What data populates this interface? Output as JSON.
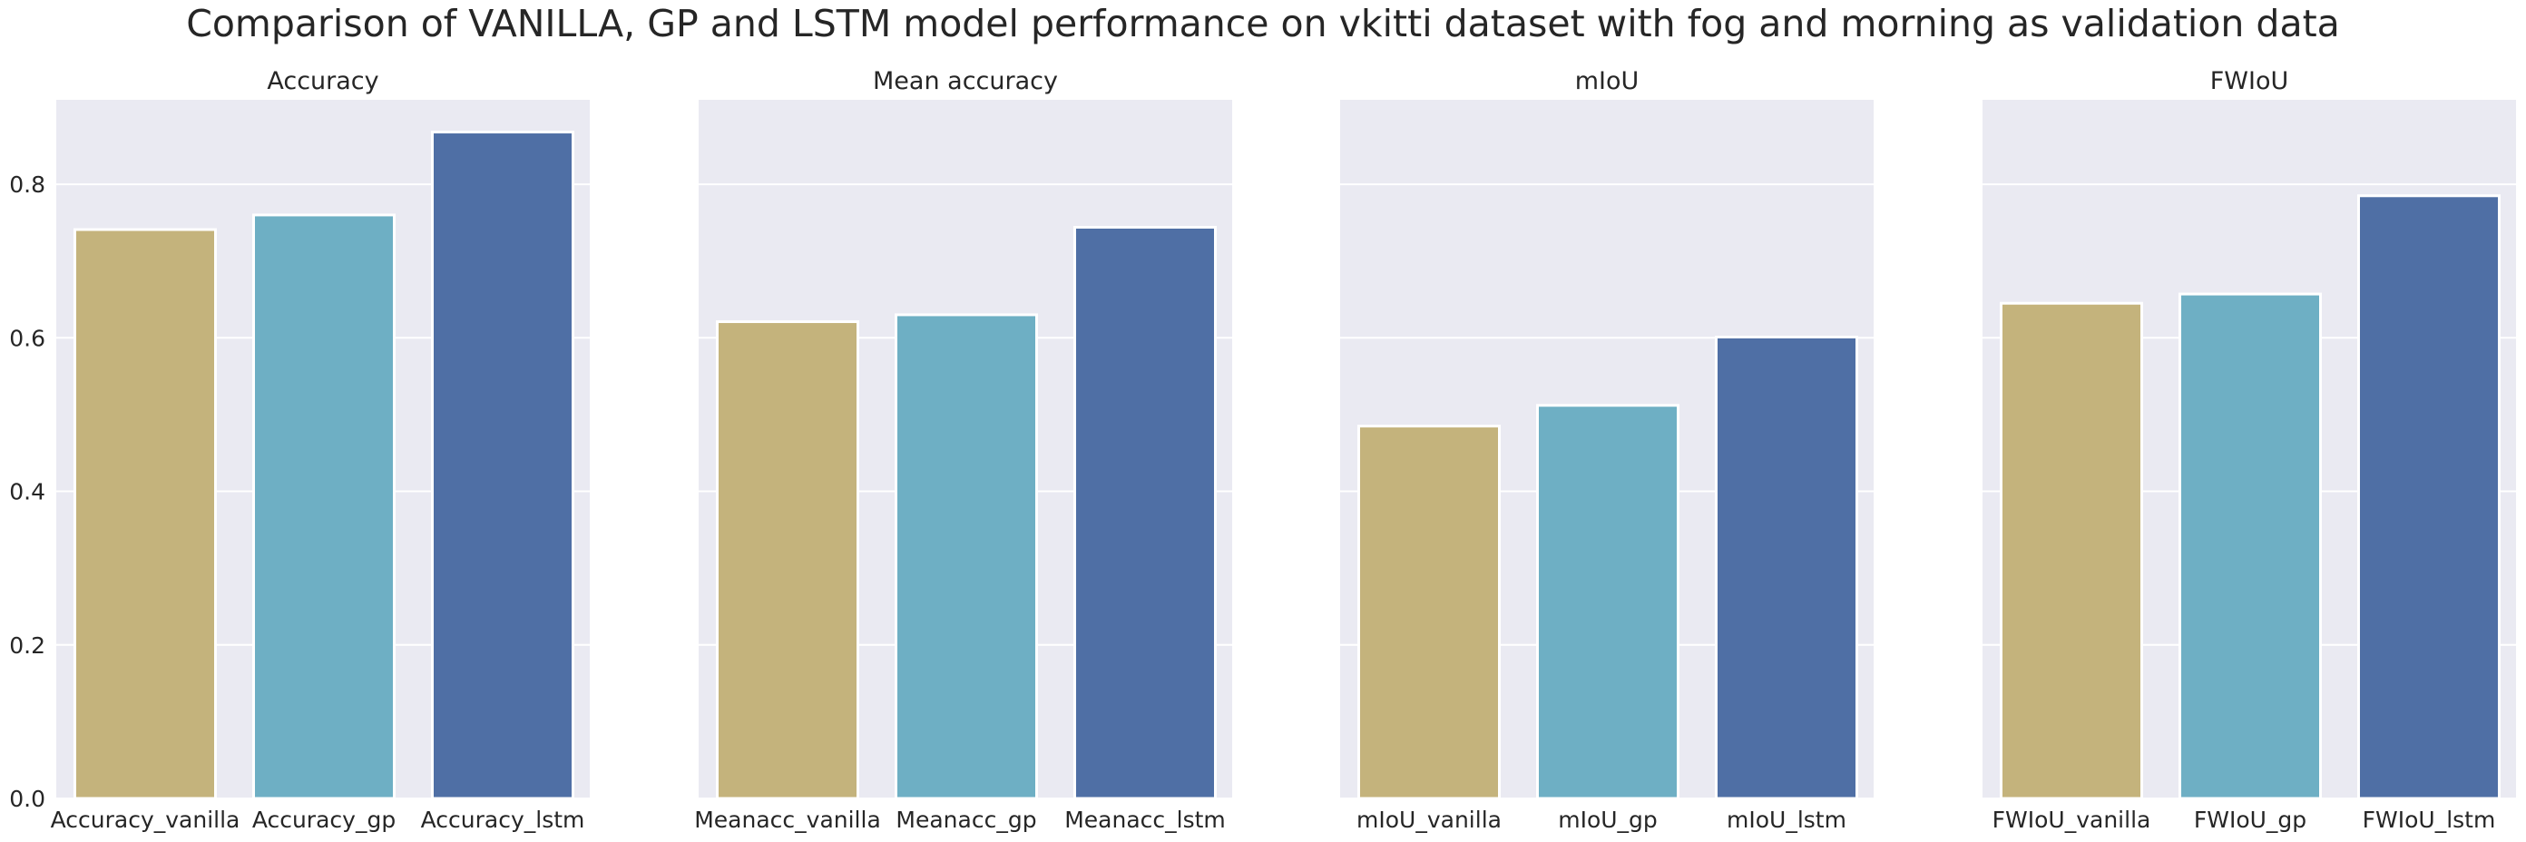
{
  "chart_data": {
    "title": "Comparison of VANILLA, GP and LSTM model performance on vkitti dataset with fog and morning as validation data",
    "shared_y": true,
    "ylim": [
      0,
      0.91
    ],
    "yticks": [
      "0.0",
      "0.2",
      "0.4",
      "0.6",
      "0.8"
    ],
    "ytick_values": [
      0,
      0.2,
      0.4,
      0.6,
      0.8
    ],
    "grid": true,
    "colors": [
      "#c4b37c",
      "#6eafc4",
      "#4f6fa5"
    ],
    "background": "#eaeaf2",
    "panels": [
      {
        "type": "bar",
        "title": "Accuracy",
        "categories": [
          "Accuracy_vanilla",
          "Accuracy_gp",
          "Accuracy_lstm"
        ],
        "values": [
          0.741,
          0.76,
          0.868
        ]
      },
      {
        "type": "bar",
        "title": "Mean accuracy",
        "categories": [
          "Meanacc_vanilla",
          "Meanacc_gp",
          "Meanacc_lstm"
        ],
        "values": [
          0.621,
          0.63,
          0.744
        ]
      },
      {
        "type": "bar",
        "title": "mIoU",
        "categories": [
          "mIoU_vanilla",
          "mIoU_gp",
          "mIoU_lstm"
        ],
        "values": [
          0.485,
          0.512,
          0.601
        ]
      },
      {
        "type": "bar",
        "title": "FWIoU",
        "categories": [
          "FWIoU_vanilla",
          "FWIoU_gp",
          "FWIoU_lstm"
        ],
        "values": [
          0.645,
          0.657,
          0.785
        ]
      }
    ]
  }
}
